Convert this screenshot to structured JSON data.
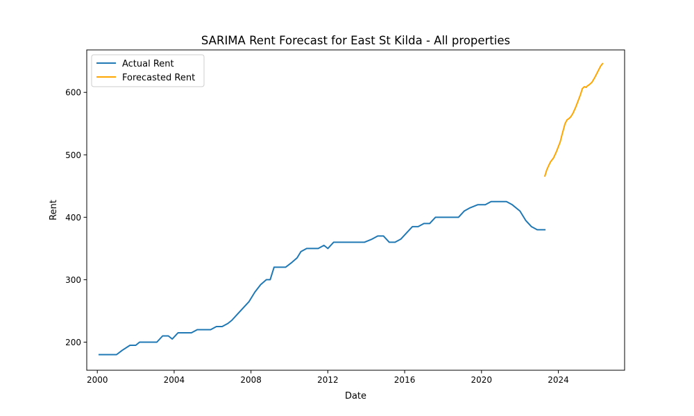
{
  "chart_data": {
    "type": "line",
    "title": "SARIMA Rent Forecast for East St Kilda - All properties",
    "xlabel": "Date",
    "ylabel": "Rent",
    "xlim": [
      1999.45,
      2027.45
    ],
    "ylim": [
      155,
      668
    ],
    "x_ticks": [
      2000,
      2004,
      2008,
      2012,
      2016,
      2020,
      2024
    ],
    "y_ticks": [
      200,
      300,
      400,
      500,
      600
    ],
    "grid": false,
    "legend_position": "upper left",
    "series": [
      {
        "name": "Actual Rent",
        "color": "#1f77b4",
        "x": [
          2000.1,
          2000.5,
          2001.0,
          2001.3,
          2001.7,
          2002.0,
          2002.2,
          2002.5,
          2002.8,
          2003.1,
          2003.4,
          2003.7,
          2003.9,
          2004.2,
          2004.5,
          2004.9,
          2005.2,
          2005.5,
          2005.9,
          2006.2,
          2006.5,
          2006.8,
          2007.0,
          2007.3,
          2007.6,
          2007.9,
          2008.2,
          2008.5,
          2008.8,
          2009.0,
          2009.2,
          2009.5,
          2009.8,
          2010.1,
          2010.4,
          2010.6,
          2010.9,
          2011.2,
          2011.5,
          2011.8,
          2012.0,
          2012.3,
          2012.6,
          2013.0,
          2013.4,
          2013.9,
          2014.3,
          2014.6,
          2014.9,
          2015.2,
          2015.5,
          2015.8,
          2016.1,
          2016.4,
          2016.7,
          2017.0,
          2017.3,
          2017.6,
          2018.0,
          2018.4,
          2018.8,
          2019.1,
          2019.4,
          2019.8,
          2020.2,
          2020.5,
          2020.8,
          2021.0,
          2021.3,
          2021.6,
          2022.0,
          2022.3,
          2022.6,
          2022.9,
          2023.1,
          2023.3
        ],
        "values": [
          180,
          180,
          180,
          187,
          195,
          195,
          200,
          200,
          200,
          200,
          210,
          210,
          205,
          215,
          215,
          215,
          220,
          220,
          220,
          225,
          225,
          230,
          235,
          245,
          255,
          265,
          280,
          292,
          300,
          300,
          320,
          320,
          320,
          327,
          335,
          345,
          350,
          350,
          350,
          355,
          350,
          360,
          360,
          360,
          360,
          360,
          365,
          370,
          370,
          360,
          360,
          365,
          375,
          385,
          385,
          390,
          390,
          400,
          400,
          400,
          400,
          410,
          415,
          420,
          420,
          425,
          425,
          425,
          425,
          420,
          410,
          395,
          385,
          380,
          380,
          380
        ]
      },
      {
        "name": "Forecasted Rent",
        "color": "#ffa500",
        "x": [
          2023.3,
          2023.4,
          2023.5,
          2023.6,
          2023.75,
          2023.9,
          2024.0,
          2024.1,
          2024.2,
          2024.35,
          2024.45,
          2024.55,
          2024.65,
          2024.75,
          2024.9,
          2025.0,
          2025.15,
          2025.25,
          2025.35,
          2025.45,
          2025.5,
          2025.6,
          2025.75,
          2025.9,
          2026.0,
          2026.1,
          2026.2,
          2026.3
        ],
        "values": [
          466,
          476,
          483,
          489,
          495,
          505,
          513,
          521,
          533,
          550,
          556,
          558,
          561,
          566,
          576,
          584,
          596,
          606,
          609,
          608,
          610,
          612,
          616,
          624,
          630,
          636,
          642,
          646
        ]
      }
    ]
  }
}
